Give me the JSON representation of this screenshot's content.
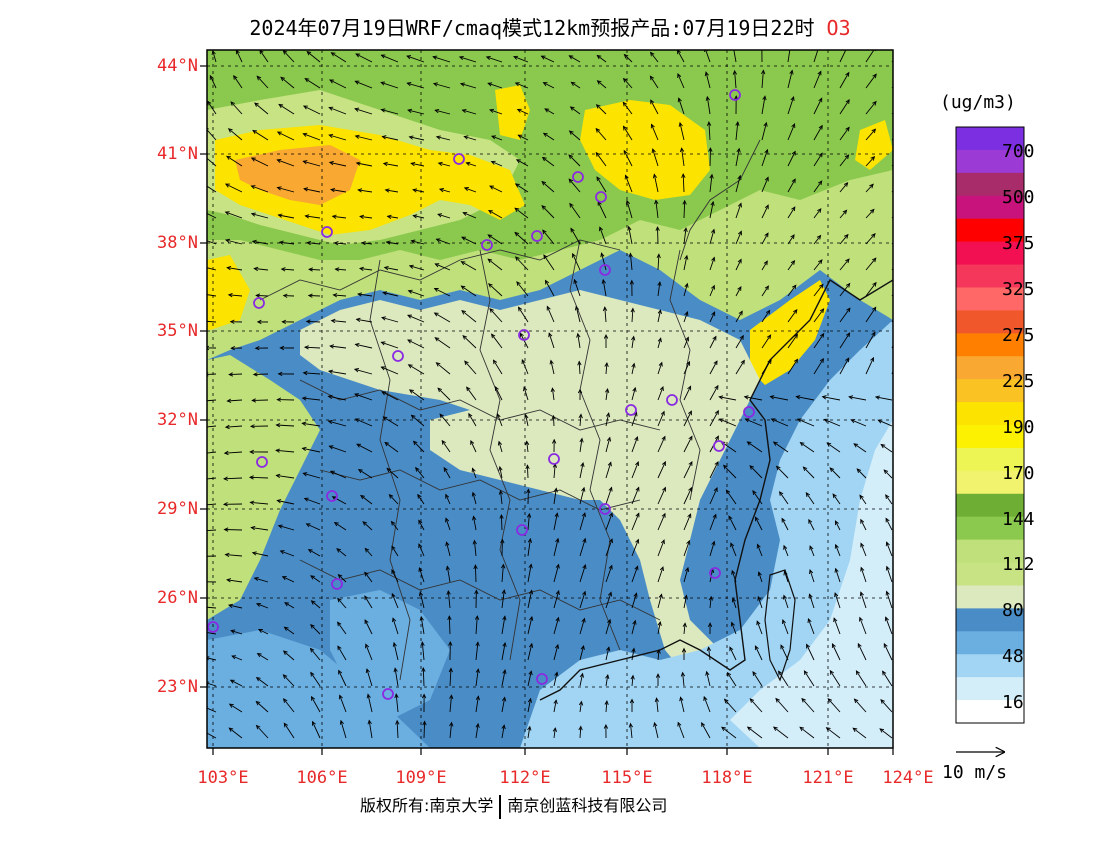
{
  "title": {
    "main": "2024年07月19日WRF/cmaq模式12km预报产品:07月19日22时",
    "pollutant": "O3"
  },
  "map": {
    "lat_labels": [
      "44°N",
      "41°N",
      "38°N",
      "35°N",
      "32°N",
      "29°N",
      "26°N",
      "23°N"
    ],
    "lon_labels": [
      "103°E",
      "106°E",
      "109°E",
      "112°E",
      "115°E",
      "118°E",
      "121°E",
      "124°E"
    ],
    "extent": {
      "lon_min": 102.8,
      "lon_max": 124.0,
      "lat_min": 21.6,
      "lat_max": 44.4
    },
    "colors": {
      "blue_dark": "#4a8cc6",
      "blue_mid": "#6baee0",
      "blue_light": "#a2d5f3",
      "blue_pale": "#d3edf9",
      "green_pale": "#dce8be",
      "green_light": "#bfe07a",
      "green_mid": "#8ac84e",
      "yellow": "#fce300",
      "orange": "#f9a832",
      "marker": "#8a2be2"
    }
  },
  "colorbar": {
    "unit": "(ug/m3)",
    "labels": [
      "700",
      "500",
      "375",
      "325",
      "275",
      "225",
      "190",
      "170",
      "144",
      "112",
      "80",
      "48",
      "16"
    ],
    "colors": [
      "#7b2fe0",
      "#9b3ad4",
      "#a82c6a",
      "#c7137b",
      "#ff0000",
      "#f21052",
      "#f4375a",
      "#ff6866",
      "#f0572a",
      "#ff7f00",
      "#f9a832",
      "#fbc224",
      "#fce300",
      "#fbf100",
      "#ecf553",
      "#f1f26d",
      "#6fae34",
      "#8ac84e",
      "#bfe07a",
      "#c7e383",
      "#dce8be",
      "#4a8cc6",
      "#6baee0",
      "#a2d5f3",
      "#d3edf9",
      "#ffffff"
    ]
  },
  "vector_reference": {
    "label": "10 m/s"
  },
  "footer": {
    "copyright_left": "版权所有:南京大学",
    "copyright_right": "南京创蓝科技有限公司"
  }
}
